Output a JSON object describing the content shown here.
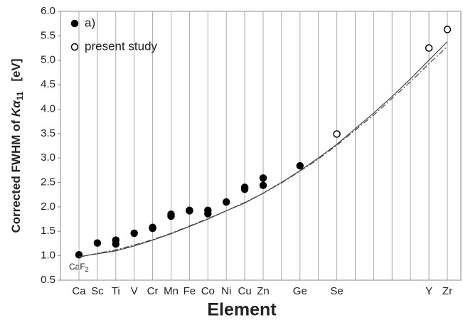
{
  "chart_data": {
    "type": "scatter",
    "ylabel_prefix": "Corrected FWHM of",
    "ylabel_symbol": "Kα",
    "ylabel_subscript": "11",
    "ylabel_unit": "[eV]",
    "xlabel": "Element",
    "annotation": {
      "text": "CaF",
      "subscript": "2"
    },
    "categories": [
      "Ca",
      "Sc",
      "Ti",
      "V",
      "Cr",
      "Mn",
      "Fe",
      "Co",
      "Ni",
      "Cu",
      "Zn",
      null,
      "Ge",
      null,
      "Se",
      null,
      null,
      null,
      null,
      "Y",
      "Zr"
    ],
    "ylim": [
      0.5,
      6.0
    ],
    "yticks": [
      0.5,
      {
        "value": 1,
        "label": "1.0"
      },
      1.5,
      {
        "value": 2,
        "label": "2.0"
      },
      2.5,
      {
        "value": 3,
        "label": "3.0"
      },
      3.5,
      {
        "value": 4,
        "label": "4.0"
      },
      4.5,
      {
        "value": 5,
        "label": "5.0"
      },
      5.5,
      {
        "value": 6,
        "label": "6.0"
      }
    ],
    "grid": true,
    "legend": "top-left",
    "series": [
      {
        "name": "a)",
        "marker": "filled",
        "color": "#000000",
        "x": [
          "Ca",
          "Sc",
          "Ti",
          "Ti",
          "V",
          "Cr",
          "Cr",
          "Mn",
          "Mn",
          "Fe",
          "Fe",
          "Co",
          "Co",
          "Ni",
          "Cu",
          "Cu",
          "Zn",
          "Zn",
          "Ge"
        ],
        "values": [
          1.02,
          1.26,
          1.32,
          1.24,
          1.46,
          1.58,
          1.56,
          1.85,
          1.81,
          1.93,
          1.92,
          1.93,
          1.86,
          2.1,
          2.4,
          2.36,
          2.59,
          2.44,
          2.84
        ]
      },
      {
        "name": "present study",
        "marker": "open",
        "color": "#000000",
        "x": [
          "Se",
          "Y",
          "Zr"
        ],
        "values": [
          3.49,
          5.25,
          5.63
        ]
      },
      {
        "line": "solid",
        "color": "#444444",
        "values": [
          0.98,
          1.04,
          1.1,
          1.2,
          1.32,
          1.45,
          1.6,
          1.75,
          1.92,
          2.08,
          2.28,
          2.5,
          2.74,
          3.0,
          3.28,
          3.6,
          3.92,
          4.26,
          4.62,
          5.0,
          5.38
        ]
      },
      {
        "line": "dashdot",
        "color": "#444444",
        "values": [
          0.97,
          1.05,
          1.12,
          1.22,
          1.33,
          1.46,
          1.61,
          1.76,
          1.92,
          2.09,
          2.28,
          2.49,
          2.73,
          2.98,
          3.26,
          3.57,
          3.88,
          4.22,
          4.56,
          4.93,
          5.28
        ]
      }
    ]
  }
}
